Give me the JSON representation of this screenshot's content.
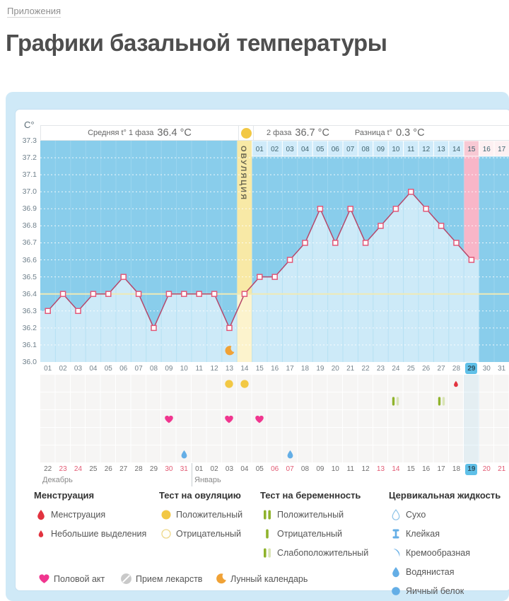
{
  "page": {
    "breadcrumb": "Приложения",
    "title": "Графики базальной температуры"
  },
  "chart": {
    "y_axis_unit": "C°",
    "header": {
      "phase1_label": "Средняя t° 1 фаза",
      "phase1_value": "36.4 °C",
      "phase2_label": "2 фаза",
      "phase2_value": "36.7 °C",
      "diff_label": "Разница t°",
      "diff_value": "0.3 °C"
    },
    "ovulation_label": "ОВУЛЯЦИЯ"
  },
  "chart_data": {
    "type": "line",
    "title": "Графики базальной температуры",
    "ylabel": "C°",
    "ylim": [
      36.0,
      37.3
    ],
    "y_ticks": [
      37.3,
      37.2,
      37.1,
      37.0,
      36.9,
      36.8,
      36.7,
      36.6,
      36.5,
      36.4,
      36.3,
      36.2,
      36.1,
      36.0
    ],
    "grid": "dotted-white",
    "days_in_cycle": 31,
    "cycle_day_labels": [
      "01",
      "02",
      "03",
      "04",
      "05",
      "06",
      "07",
      "08",
      "09",
      "10",
      "11",
      "12",
      "13",
      "14",
      "15",
      "16",
      "17",
      "18",
      "19",
      "20",
      "21",
      "22",
      "23",
      "24",
      "25",
      "26",
      "27",
      "28",
      "29",
      "30",
      "31"
    ],
    "temperatures": [
      36.3,
      36.4,
      36.3,
      36.4,
      36.4,
      36.5,
      36.4,
      36.2,
      36.4,
      36.4,
      36.4,
      36.4,
      36.2,
      36.4,
      36.5,
      36.5,
      36.6,
      36.7,
      36.9,
      36.7,
      36.9,
      36.7,
      36.8,
      36.9,
      37.0,
      36.9,
      36.8,
      36.7,
      36.6
    ],
    "phase1_avg": 36.4,
    "phase2_avg": 36.7,
    "phase_diff": 0.3,
    "avg_line_value": 36.4,
    "ovulation_day": 14,
    "phase2_day_labels": [
      "01",
      "02",
      "03",
      "04",
      "05",
      "06",
      "07",
      "08",
      "09",
      "10",
      "11",
      "12",
      "13",
      "14",
      "15",
      "16",
      "17"
    ],
    "phase2_pink_label": "15",
    "phase2_pale_labels": [
      "16",
      "17"
    ],
    "highlight_cycle_day": 29,
    "pink_column_day": 29,
    "events": {
      "ovulation_test_positive_days": [
        13,
        14
      ],
      "lunar_calendar_days": [
        13
      ],
      "spotting_days": [
        28
      ],
      "pregnancy_test_weak_positive_days": [
        24,
        27
      ],
      "intercourse_days": [
        9,
        13,
        15
      ],
      "cervical_watery_days": [
        10,
        17
      ]
    },
    "calendar": {
      "december": {
        "label": "Декабрь",
        "days": [
          "22",
          "23",
          "24",
          "25",
          "26",
          "27",
          "28",
          "29",
          "30",
          "31"
        ],
        "red_days": [
          23,
          24,
          30,
          31
        ]
      },
      "january": {
        "label": "Январь",
        "days": [
          "01",
          "02",
          "03",
          "04",
          "05",
          "06",
          "07",
          "08",
          "09",
          "10",
          "11",
          "12",
          "13",
          "14",
          "15",
          "16",
          "17",
          "18",
          "19",
          "20",
          "21"
        ],
        "red_days": [
          6,
          7,
          13,
          14,
          20,
          21
        ],
        "today": 19
      }
    }
  },
  "legend": {
    "groups": [
      {
        "title": "Менструация",
        "items": [
          {
            "icon": "drop-large-red",
            "label": "Менструация"
          },
          {
            "icon": "drop-small-red",
            "label": "Небольшие выделения"
          }
        ]
      },
      {
        "title": "Тест на овуляцию",
        "items": [
          {
            "icon": "circle-yellow-filled",
            "label": "Положительный"
          },
          {
            "icon": "circle-yellow-outline",
            "label": "Отрицательный"
          }
        ]
      },
      {
        "title": "Тест на беременность",
        "items": [
          {
            "icon": "bars-two-green",
            "label": "Положительный"
          },
          {
            "icon": "bar-one-green",
            "label": "Отрицательный"
          },
          {
            "icon": "bars-green-pale",
            "label": "Слабоположительный"
          }
        ]
      },
      {
        "title": "Цервикальная жидкость",
        "items": [
          {
            "icon": "drop-outline-blue",
            "label": "Сухо"
          },
          {
            "icon": "ibeam-blue",
            "label": "Клейкая"
          },
          {
            "icon": "crescent-blue",
            "label": "Кремообразная"
          },
          {
            "icon": "drop-blue",
            "label": "Водянистая"
          },
          {
            "icon": "circle-blue",
            "label": "Яичный белок"
          }
        ]
      }
    ],
    "extra": [
      {
        "icon": "heart-pink",
        "label": "Половой акт"
      },
      {
        "icon": "pill-gray",
        "label": "Прием лекарств"
      },
      {
        "icon": "moon-orange",
        "label": "Лунный календарь"
      }
    ]
  },
  "colors": {
    "panel": "#cfe9f7",
    "plot_bg": "#89cdeb",
    "area_fill": "#cdeaf8",
    "line": "#b5486b",
    "marker_stroke": "#e25878",
    "avg_line": "#efeab5",
    "ovulation_col": "#f8e9a6",
    "ovulation_col_light": "#fcf3cd",
    "pink_col": "#f8b6c8",
    "day_cell": "#d0ebfa",
    "day_cell_pink": "#f8c9d4",
    "day_cell_pale": "#fdf0f2",
    "today_tab": "#5fc0e8",
    "red_date": "#e25b74",
    "heart": "#f0368f",
    "drop_red": "#e2333f",
    "test_yellow": "#f2c844",
    "bar_green": "#8fb32c",
    "bar_green_pale": "#d9e4b5",
    "fluid_blue": "#64aee6",
    "moon_orange": "#f0a236",
    "pill_gray": "#c9c9c9"
  }
}
